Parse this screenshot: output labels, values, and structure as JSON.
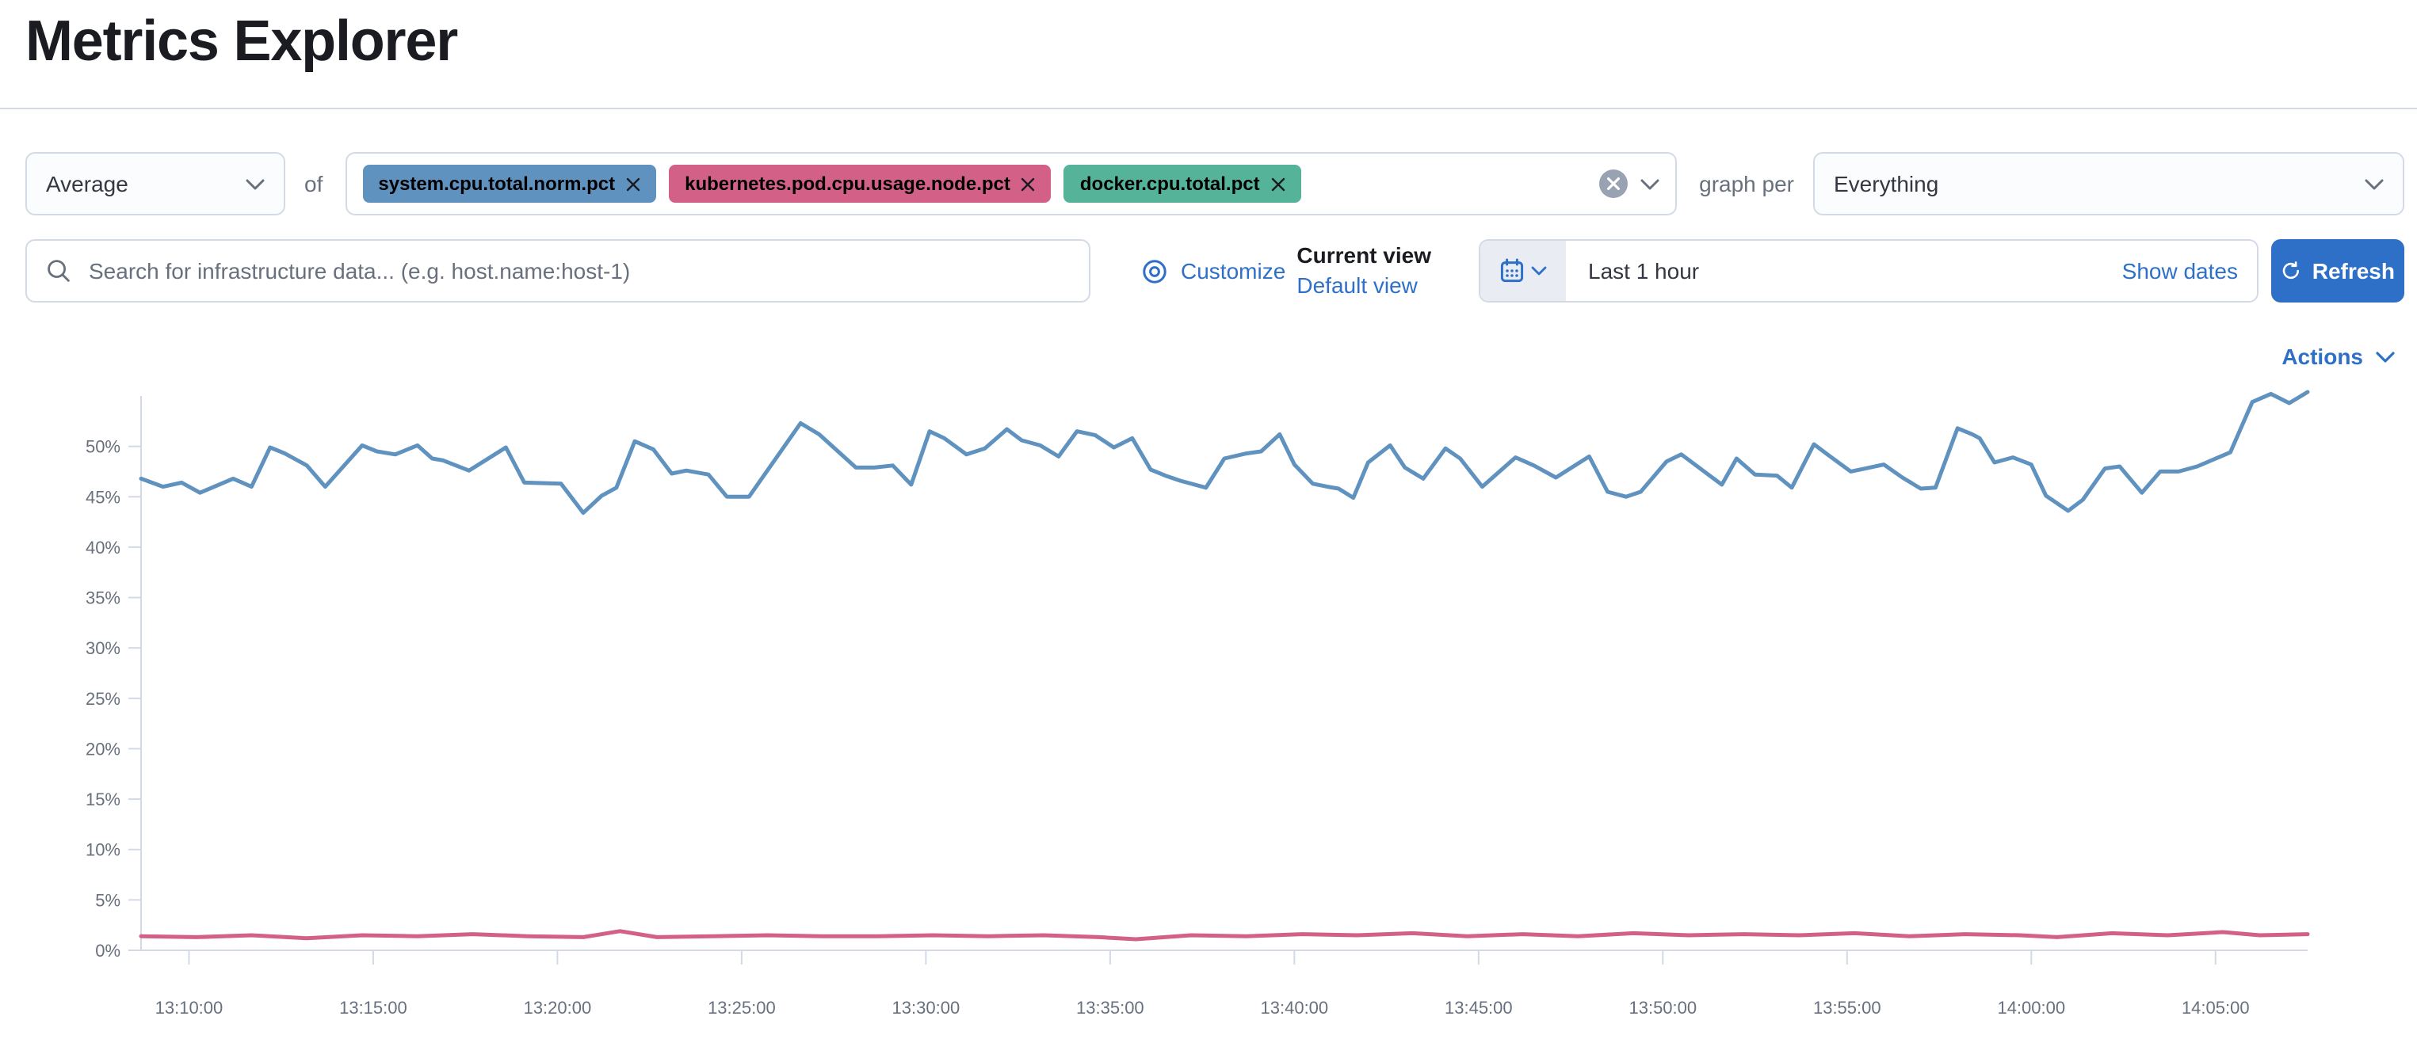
{
  "page": {
    "title": "Metrics Explorer"
  },
  "toolbar": {
    "aggregation_value": "Average",
    "of_label": "of",
    "metrics": [
      {
        "label": "system.cpu.total.norm.pct",
        "color": "#6092C0"
      },
      {
        "label": "kubernetes.pod.cpu.usage.node.pct",
        "color": "#D36086"
      },
      {
        "label": "docker.cpu.total.pct",
        "color": "#54B399"
      }
    ],
    "graph_per_label": "graph per",
    "graph_per_value": "Everything"
  },
  "filter_bar": {
    "search_placeholder": "Search for infrastructure data... (e.g. host.name:host-1)",
    "customize_label": "Customize",
    "current_view_label": "Current view",
    "default_view_label": "Default view"
  },
  "time_picker": {
    "value": "Last 1 hour",
    "show_dates_label": "Show dates",
    "refresh_label": "Refresh"
  },
  "actions_label": "Actions",
  "colors": {
    "accent_blue": "#2E70C8",
    "series_blue": "#6092C0",
    "series_pink": "#D36086",
    "badge_green": "#54B399",
    "axis_gray": "#D3DAE6",
    "label_gray": "#69707D"
  },
  "chart_data": {
    "type": "line",
    "title": "",
    "xlabel": "",
    "ylabel": "",
    "grid": false,
    "legend": "none",
    "y_axis": {
      "min": 0,
      "max": 55,
      "unit": "%",
      "tick_labels": [
        "0%",
        "5%",
        "10%",
        "15%",
        "20%",
        "25%",
        "30%",
        "35%",
        "40%",
        "45%",
        "50%"
      ]
    },
    "x_axis": {
      "tick_labels": [
        "13:10:00",
        "13:15:00",
        "13:20:00",
        "13:25:00",
        "13:30:00",
        "13:35:00",
        "13:40:00",
        "13:45:00",
        "13:50:00",
        "13:55:00",
        "14:00:00",
        "14:05:00"
      ],
      "first_tick_offset_min": 1.3,
      "tick_interval_min": 5
    },
    "time_span_min": 58.8,
    "series": [
      {
        "name": "Average system.cpu.total.norm.pct",
        "color": "#6092C0",
        "points": [
          [
            0,
            46.8
          ],
          [
            0.6,
            46.0
          ],
          [
            1.1,
            46.4
          ],
          [
            1.6,
            45.4
          ],
          [
            2.5,
            46.8
          ],
          [
            3.0,
            46.0
          ],
          [
            3.5,
            49.9
          ],
          [
            3.9,
            49.3
          ],
          [
            4.5,
            48.1
          ],
          [
            5.0,
            46.0
          ],
          [
            6.0,
            50.1
          ],
          [
            6.4,
            49.5
          ],
          [
            6.9,
            49.2
          ],
          [
            7.5,
            50.1
          ],
          [
            7.9,
            48.8
          ],
          [
            8.2,
            48.6
          ],
          [
            8.9,
            47.6
          ],
          [
            9.9,
            49.9
          ],
          [
            10.4,
            46.4
          ],
          [
            11.4,
            46.3
          ],
          [
            12.0,
            43.4
          ],
          [
            12.5,
            45.1
          ],
          [
            12.9,
            45.9
          ],
          [
            13.4,
            50.5
          ],
          [
            13.9,
            49.7
          ],
          [
            14.4,
            47.3
          ],
          [
            14.8,
            47.6
          ],
          [
            15.4,
            47.2
          ],
          [
            15.9,
            45.0
          ],
          [
            16.5,
            45.0
          ],
          [
            17.9,
            52.3
          ],
          [
            18.4,
            51.2
          ],
          [
            19.4,
            47.9
          ],
          [
            19.9,
            47.9
          ],
          [
            20.4,
            48.1
          ],
          [
            20.9,
            46.2
          ],
          [
            21.4,
            51.5
          ],
          [
            21.8,
            50.8
          ],
          [
            22.4,
            49.2
          ],
          [
            22.9,
            49.8
          ],
          [
            23.5,
            51.7
          ],
          [
            23.9,
            50.6
          ],
          [
            24.4,
            50.1
          ],
          [
            24.9,
            49.0
          ],
          [
            25.4,
            51.5
          ],
          [
            25.9,
            51.1
          ],
          [
            26.4,
            49.9
          ],
          [
            26.9,
            50.8
          ],
          [
            27.4,
            47.7
          ],
          [
            27.8,
            47.1
          ],
          [
            28.2,
            46.6
          ],
          [
            28.9,
            45.9
          ],
          [
            29.4,
            48.8
          ],
          [
            30.0,
            49.3
          ],
          [
            30.4,
            49.5
          ],
          [
            30.9,
            51.2
          ],
          [
            31.3,
            48.2
          ],
          [
            31.8,
            46.3
          ],
          [
            32.2,
            46.0
          ],
          [
            32.5,
            45.8
          ],
          [
            32.9,
            44.9
          ],
          [
            33.3,
            48.4
          ],
          [
            33.9,
            50.1
          ],
          [
            34.3,
            47.9
          ],
          [
            34.8,
            46.8
          ],
          [
            35.4,
            49.8
          ],
          [
            35.8,
            48.8
          ],
          [
            36.4,
            46.0
          ],
          [
            37.3,
            48.9
          ],
          [
            37.8,
            48.1
          ],
          [
            38.4,
            46.9
          ],
          [
            39.3,
            49.0
          ],
          [
            39.8,
            45.5
          ],
          [
            40.3,
            45.0
          ],
          [
            40.7,
            45.5
          ],
          [
            41.4,
            48.5
          ],
          [
            41.8,
            49.2
          ],
          [
            42.9,
            46.2
          ],
          [
            43.3,
            48.8
          ],
          [
            43.8,
            47.2
          ],
          [
            44.4,
            47.1
          ],
          [
            44.8,
            45.9
          ],
          [
            45.4,
            50.2
          ],
          [
            45.8,
            49.1
          ],
          [
            46.4,
            47.5
          ],
          [
            46.8,
            47.8
          ],
          [
            47.3,
            48.2
          ],
          [
            47.8,
            46.9
          ],
          [
            48.3,
            45.8
          ],
          [
            48.7,
            45.9
          ],
          [
            49.3,
            51.8
          ],
          [
            49.7,
            51.2
          ],
          [
            49.9,
            50.8
          ],
          [
            50.3,
            48.4
          ],
          [
            50.8,
            48.9
          ],
          [
            51.3,
            48.2
          ],
          [
            51.7,
            45.1
          ],
          [
            52.3,
            43.6
          ],
          [
            52.7,
            44.7
          ],
          [
            53.3,
            47.8
          ],
          [
            53.7,
            48.0
          ],
          [
            54.3,
            45.4
          ],
          [
            54.8,
            47.5
          ],
          [
            55.3,
            47.5
          ],
          [
            55.8,
            48.0
          ],
          [
            56.7,
            49.4
          ],
          [
            57.3,
            54.4
          ],
          [
            57.8,
            55.2
          ],
          [
            58.3,
            54.3
          ],
          [
            58.8,
            55.4
          ]
        ]
      },
      {
        "name": "Average kubernetes.pod.cpu.usage.node.pct",
        "color": "#D36086",
        "points": [
          [
            0,
            1.4
          ],
          [
            1.5,
            1.3
          ],
          [
            3,
            1.5
          ],
          [
            4.5,
            1.2
          ],
          [
            6,
            1.5
          ],
          [
            7.5,
            1.4
          ],
          [
            9,
            1.6
          ],
          [
            10.5,
            1.4
          ],
          [
            12,
            1.3
          ],
          [
            13,
            1.9
          ],
          [
            14,
            1.3
          ],
          [
            15.5,
            1.4
          ],
          [
            17,
            1.5
          ],
          [
            18.5,
            1.4
          ],
          [
            20,
            1.4
          ],
          [
            21.5,
            1.5
          ],
          [
            23,
            1.4
          ],
          [
            24.5,
            1.5
          ],
          [
            26,
            1.3
          ],
          [
            27,
            1.1
          ],
          [
            28.5,
            1.5
          ],
          [
            30,
            1.4
          ],
          [
            31.5,
            1.6
          ],
          [
            33,
            1.5
          ],
          [
            34.5,
            1.7
          ],
          [
            36,
            1.4
          ],
          [
            37.5,
            1.6
          ],
          [
            39,
            1.4
          ],
          [
            40.5,
            1.7
          ],
          [
            42,
            1.5
          ],
          [
            43.5,
            1.6
          ],
          [
            45,
            1.5
          ],
          [
            46.5,
            1.7
          ],
          [
            48,
            1.4
          ],
          [
            49.5,
            1.6
          ],
          [
            51,
            1.5
          ],
          [
            52,
            1.3
          ],
          [
            53.5,
            1.7
          ],
          [
            55,
            1.5
          ],
          [
            56.5,
            1.8
          ],
          [
            57.5,
            1.5
          ],
          [
            58.8,
            1.6
          ]
        ]
      }
    ]
  }
}
